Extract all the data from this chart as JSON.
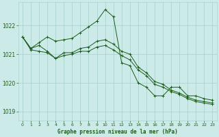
{
  "title": "Graphe pression niveau de la mer (hPa)",
  "bg_color": "#cceae8",
  "grid_color": "#aad4d0",
  "line_color": "#1a5c1a",
  "xlim": [
    -0.5,
    23.5
  ],
  "ylim": [
    1018.7,
    1022.8
  ],
  "yticks": [
    1019,
    1020,
    1021,
    1022
  ],
  "xticks": [
    0,
    1,
    2,
    3,
    4,
    5,
    6,
    7,
    8,
    9,
    10,
    11,
    12,
    13,
    14,
    15,
    16,
    17,
    18,
    19,
    20,
    21,
    22,
    23
  ],
  "series": [
    [
      1021.6,
      1021.2,
      1021.4,
      1021.6,
      1021.45,
      1021.5,
      1021.55,
      1021.75,
      1021.95,
      1022.15,
      1022.55,
      1022.3,
      1020.7,
      1020.6,
      1020.0,
      1019.85,
      1019.55,
      1019.55,
      1019.85,
      1019.85,
      1019.55,
      1019.55,
      1019.45,
      1019.4
    ],
    [
      1021.6,
      1021.2,
      1021.3,
      1021.1,
      1020.85,
      1021.05,
      1021.05,
      1021.2,
      1021.25,
      1021.45,
      1021.5,
      1021.35,
      1021.1,
      1021.0,
      1020.55,
      1020.35,
      1020.05,
      1019.95,
      1019.75,
      1019.65,
      1019.5,
      1019.4,
      1019.35,
      1019.3
    ],
    [
      1021.6,
      1021.15,
      1021.1,
      1021.05,
      1020.85,
      1020.95,
      1021.0,
      1021.1,
      1021.1,
      1021.25,
      1021.3,
      1021.15,
      1020.95,
      1020.8,
      1020.45,
      1020.25,
      1019.95,
      1019.85,
      1019.7,
      1019.6,
      1019.45,
      1019.35,
      1019.3,
      1019.25
    ]
  ]
}
